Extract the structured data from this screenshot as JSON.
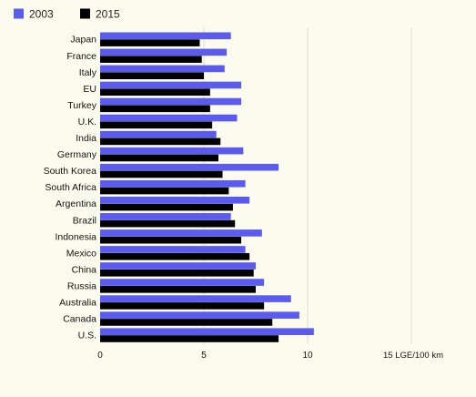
{
  "chart_data": {
    "type": "bar",
    "orientation": "horizontal",
    "categories": [
      "Japan",
      "France",
      "Italy",
      "EU",
      "Turkey",
      "U.K.",
      "India",
      "Germany",
      "South Korea",
      "South Africa",
      "Argentina",
      "Brazil",
      "Indonesia",
      "Mexico",
      "China",
      "Russia",
      "Australia",
      "Canada",
      "U.S."
    ],
    "series": [
      {
        "name": "2003",
        "color": "#5b5bf0",
        "values": [
          6.3,
          6.1,
          6.0,
          6.8,
          6.8,
          6.6,
          5.6,
          6.9,
          8.6,
          7.0,
          7.2,
          6.3,
          7.8,
          7.0,
          7.5,
          7.9,
          9.2,
          9.6,
          10.3
        ]
      },
      {
        "name": "2015",
        "color": "#000000",
        "values": [
          4.8,
          4.9,
          5.0,
          5.3,
          5.3,
          5.4,
          5.8,
          5.7,
          5.9,
          6.2,
          6.4,
          6.5,
          6.8,
          7.2,
          7.4,
          7.5,
          7.9,
          8.3,
          8.6
        ]
      }
    ],
    "xlim": [
      0,
      15
    ],
    "xticks": [
      "0",
      "5",
      "10",
      "15 LGE/100 km"
    ],
    "grid": true,
    "legend_position": "top-left"
  },
  "colors": {
    "background": "#fcfcee",
    "grid": "#dcdcd0"
  }
}
